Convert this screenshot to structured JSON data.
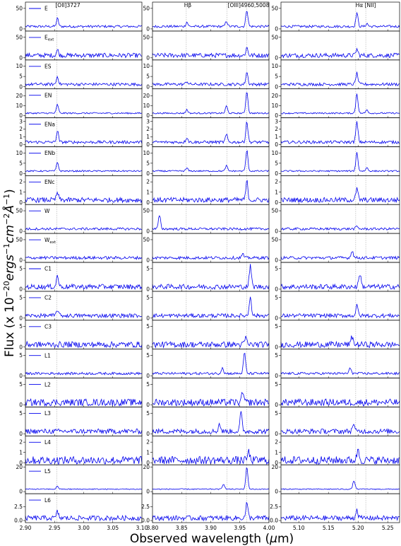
{
  "chart_data": {
    "type": "line",
    "xlabel": "Observed wavelength (μm)",
    "ylabel": "Flux (x 10^-20 ergs^-1 cm^-2 Å^-1)",
    "line_color": "#0000ee",
    "grid": false,
    "panels_x": [
      {
        "xlim": [
          2.9,
          3.1
        ],
        "xticks": [
          "2.90",
          "2.95",
          "3.00",
          "3.05",
          "3.10"
        ],
        "lines_label": "[OII]3727",
        "marker_x": [
          2.954
        ]
      },
      {
        "xlim": [
          3.8,
          4.0
        ],
        "xticks": [
          "3.80",
          "3.85",
          "3.90",
          "3.95",
          "4.00"
        ],
        "lines_label": [
          "Hβ",
          "[OIII]4960,5008"
        ],
        "marker_x": [
          3.858,
          3.928,
          3.962
        ]
      },
      {
        "xlim": [
          5.07,
          5.27
        ],
        "xticks": [
          "5.10",
          "5.15",
          "5.20",
          "5.25"
        ],
        "lines_label": "Hα  [NII]",
        "marker_x": [
          5.196,
          5.213
        ]
      }
    ],
    "rows": [
      {
        "name": "E",
        "ymax": 60,
        "yticks": [
          "0",
          "50"
        ],
        "noise": 0.05,
        "peaks": [
          [
            0,
            2.955,
            0.32
          ],
          [
            1,
            3.859,
            0.18
          ],
          [
            1,
            3.927,
            0.22
          ],
          [
            1,
            3.962,
            0.68
          ],
          [
            2,
            5.198,
            0.55
          ],
          [
            2,
            5.215,
            0.12
          ]
        ]
      },
      {
        "name": "E",
        "name_sub": "ext",
        "ymax": 60,
        "yticks": [
          "0",
          "50"
        ],
        "noise": 0.09,
        "peaks": [
          [
            0,
            2.955,
            0.22
          ],
          [
            1,
            3.962,
            0.32
          ],
          [
            2,
            5.198,
            0.25
          ]
        ]
      },
      {
        "name": "ES",
        "ymax": 12,
        "yticks": [
          "0",
          "5",
          "10"
        ],
        "noise": 0.06,
        "peaks": [
          [
            0,
            2.955,
            0.32
          ],
          [
            1,
            3.859,
            0.12
          ],
          [
            1,
            3.962,
            0.5
          ],
          [
            2,
            5.198,
            0.45
          ]
        ]
      },
      {
        "name": "EN",
        "ymax": 25,
        "yticks": [
          "0",
          "10",
          "20"
        ],
        "noise": 0.03,
        "peaks": [
          [
            0,
            2.955,
            0.35
          ],
          [
            1,
            3.859,
            0.15
          ],
          [
            1,
            3.927,
            0.3
          ],
          [
            1,
            3.962,
            0.9
          ],
          [
            2,
            5.198,
            0.8
          ],
          [
            2,
            5.215,
            0.15
          ]
        ]
      },
      {
        "name": "ENa",
        "ymax": 3.2,
        "yticks": [
          "0",
          "1",
          "2",
          "3"
        ],
        "noise": 0.06,
        "peaks": [
          [
            0,
            2.955,
            0.45
          ],
          [
            1,
            3.859,
            0.2
          ],
          [
            1,
            3.927,
            0.3
          ],
          [
            1,
            3.962,
            0.85
          ],
          [
            2,
            5.198,
            0.8
          ]
        ]
      },
      {
        "name": "ENb",
        "ymax": 12,
        "yticks": [
          "0",
          "5",
          "10"
        ],
        "noise": 0.03,
        "peaks": [
          [
            0,
            2.955,
            0.35
          ],
          [
            1,
            3.859,
            0.12
          ],
          [
            1,
            3.927,
            0.22
          ],
          [
            1,
            3.962,
            0.85
          ],
          [
            2,
            5.198,
            0.75
          ],
          [
            2,
            5.215,
            0.14
          ]
        ]
      },
      {
        "name": "ENc",
        "ymax": 2.4,
        "yticks": [
          "0",
          "1",
          "2"
        ],
        "noise": 0.1,
        "peaks": [
          [
            0,
            2.955,
            0.3
          ],
          [
            1,
            3.962,
            0.75
          ],
          [
            2,
            5.198,
            0.45
          ]
        ]
      },
      {
        "name": "W",
        "ymax": 60,
        "yticks": [
          "0",
          "50"
        ],
        "noise": 0.05,
        "peaks": [
          [
            1,
            3.812,
            0.55
          ],
          [
            2,
            5.198,
            0.1
          ]
        ]
      },
      {
        "name": "W",
        "name_sub": "ext",
        "ymax": 60,
        "yticks": [
          "0",
          "50"
        ],
        "noise": 0.06,
        "peaks": [
          [
            1,
            3.955,
            0.15
          ],
          [
            2,
            5.19,
            0.3
          ]
        ]
      },
      {
        "name": "C1",
        "ymax": 6,
        "yticks": [
          "0",
          "5"
        ],
        "noise": 0.1,
        "peaks": [
          [
            0,
            2.955,
            0.45
          ],
          [
            1,
            3.968,
            0.85
          ],
          [
            2,
            5.203,
            0.55
          ]
        ]
      },
      {
        "name": "C2",
        "ymax": 6,
        "yticks": [
          "0",
          "5"
        ],
        "noise": 0.08,
        "peaks": [
          [
            0,
            2.955,
            0.25
          ],
          [
            1,
            3.968,
            0.8
          ],
          [
            2,
            5.198,
            0.4
          ]
        ]
      },
      {
        "name": "C3",
        "ymax": 6,
        "yticks": [
          "0",
          "5"
        ],
        "noise": 0.12,
        "peaks": [
          [
            1,
            3.96,
            0.28
          ],
          [
            2,
            5.19,
            0.32
          ]
        ]
      },
      {
        "name": "L1",
        "ymax": 6,
        "yticks": [
          "0",
          "5"
        ],
        "noise": 0.05,
        "peaks": [
          [
            1,
            3.92,
            0.25
          ],
          [
            1,
            3.958,
            0.85
          ],
          [
            2,
            5.187,
            0.22
          ]
        ]
      },
      {
        "name": "L2",
        "ymax": 6,
        "yticks": [
          "0",
          "5"
        ],
        "noise": 0.14,
        "peaks": [
          [
            1,
            3.955,
            0.4
          ]
        ]
      },
      {
        "name": "L3",
        "ymax": 6,
        "yticks": [
          "0",
          "5"
        ],
        "noise": 0.1,
        "peaks": [
          [
            1,
            3.915,
            0.3
          ],
          [
            1,
            3.952,
            0.75
          ],
          [
            2,
            5.192,
            0.3
          ]
        ]
      },
      {
        "name": "L4",
        "ymax": 2.4,
        "yticks": [
          "0",
          "1",
          "2"
        ],
        "noise": 0.16,
        "peaks": [
          [
            1,
            3.965,
            0.35
          ],
          [
            2,
            5.2,
            0.45
          ]
        ]
      },
      {
        "name": "L5",
        "ymax": 20,
        "yticks": [
          "0",
          "20"
        ],
        "noise": 0.02,
        "peaks": [
          [
            0,
            2.955,
            0.12
          ],
          [
            1,
            3.922,
            0.22
          ],
          [
            1,
            3.962,
            0.9
          ],
          [
            2,
            5.193,
            0.35
          ]
        ]
      },
      {
        "name": "L6",
        "ymax": 4.5,
        "yticks": [
          "0.0",
          "2.5"
        ],
        "noise": 0.1,
        "peaks": [
          [
            0,
            2.955,
            0.25
          ],
          [
            1,
            3.962,
            0.6
          ],
          [
            2,
            5.198,
            0.35
          ]
        ]
      }
    ]
  }
}
